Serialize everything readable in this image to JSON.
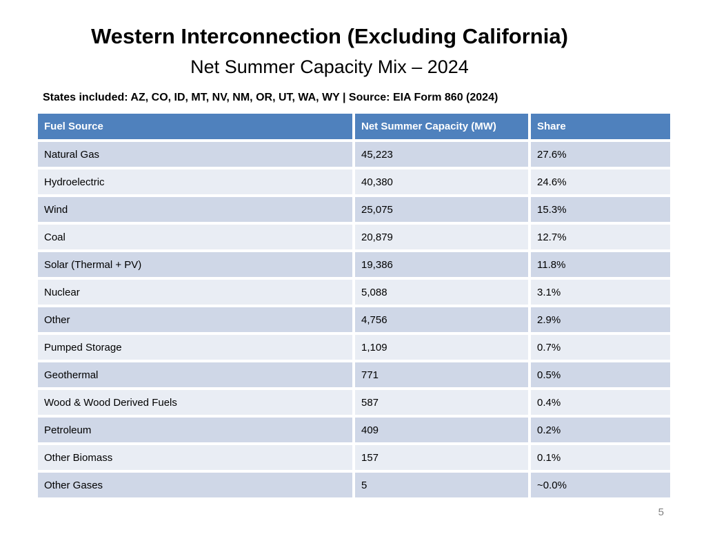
{
  "slide": {
    "title": "Western Interconnection (Excluding California)",
    "subtitle": "Net Summer Capacity Mix – 2024",
    "meta_line": "States included: AZ, CO, ID, MT, NV, NM, OR, UT, WA, WY | Source: EIA Form 860 (2024)",
    "page_number": "5"
  },
  "colors": {
    "header_bg": "#4F81BD",
    "header_text": "#FFFFFF",
    "row_odd_bg": "#CFD7E7",
    "row_even_bg": "#E9EDF4",
    "page_number_text": "#808080"
  },
  "table": {
    "columns": [
      "Fuel Source",
      "Net Summer Capacity (MW)",
      "Share"
    ],
    "rows": [
      [
        "Natural Gas",
        "45,223",
        "27.6%"
      ],
      [
        "Hydroelectric",
        "40,380",
        "24.6%"
      ],
      [
        "Wind",
        "25,075",
        "15.3%"
      ],
      [
        "Coal",
        "20,879",
        "12.7%"
      ],
      [
        "Solar (Thermal + PV)",
        "19,386",
        "11.8%"
      ],
      [
        "Nuclear",
        "5,088",
        "3.1%"
      ],
      [
        "Other",
        "4,756",
        "2.9%"
      ],
      [
        "Pumped Storage",
        "1,109",
        "0.7%"
      ],
      [
        "Geothermal",
        "771",
        "0.5%"
      ],
      [
        "Wood & Wood Derived Fuels",
        "587",
        "0.4%"
      ],
      [
        "Petroleum",
        "409",
        "0.2%"
      ],
      [
        "Other Biomass",
        "157",
        "0.1%"
      ],
      [
        "Other Gases",
        "5",
        "~0.0%"
      ]
    ]
  }
}
